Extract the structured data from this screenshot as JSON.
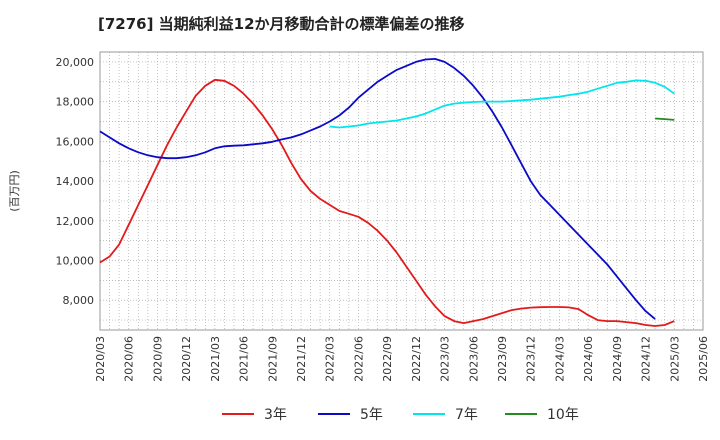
{
  "chart_data": {
    "type": "line",
    "title": "[7276]  当期純利益12か月移動合計の標準偏差の推移",
    "ylabel": "(百万円)",
    "xlabel": "",
    "ylim": [
      6500,
      20500
    ],
    "yticks": [
      8000,
      10000,
      12000,
      14000,
      16000,
      18000,
      20000
    ],
    "ytick_labels": [
      "8,000",
      "10,000",
      "12,000",
      "14,000",
      "16,000",
      "18,000",
      "20,000"
    ],
    "xticks": [
      "2020/03",
      "2020/06",
      "2020/09",
      "2020/12",
      "2021/03",
      "2021/06",
      "2021/09",
      "2021/12",
      "2022/03",
      "2022/06",
      "2022/09",
      "2022/12",
      "2023/03",
      "2023/06",
      "2023/09",
      "2023/12",
      "2024/03",
      "2024/06",
      "2024/09",
      "2024/12",
      "2025/03",
      "2025/06"
    ],
    "grid": true,
    "legend_position": "bottom",
    "series": [
      {
        "name": "3年",
        "color": "#e31a1c",
        "points": [
          [
            "2020/03",
            9900
          ],
          [
            "2020/04",
            10200
          ],
          [
            "2020/05",
            10800
          ],
          [
            "2020/06",
            11800
          ],
          [
            "2020/07",
            12800
          ],
          [
            "2020/08",
            13800
          ],
          [
            "2020/09",
            14800
          ],
          [
            "2020/10",
            15800
          ],
          [
            "2020/11",
            16700
          ],
          [
            "2020/12",
            17500
          ],
          [
            "2021/01",
            18300
          ],
          [
            "2021/02",
            18800
          ],
          [
            "2021/03",
            19100
          ],
          [
            "2021/04",
            19050
          ],
          [
            "2021/05",
            18800
          ],
          [
            "2021/06",
            18400
          ],
          [
            "2021/07",
            17900
          ],
          [
            "2021/08",
            17300
          ],
          [
            "2021/09",
            16600
          ],
          [
            "2021/10",
            15800
          ],
          [
            "2021/11",
            14900
          ],
          [
            "2021/12",
            14100
          ],
          [
            "2022/01",
            13500
          ],
          [
            "2022/02",
            13100
          ],
          [
            "2022/03",
            12800
          ],
          [
            "2022/04",
            12500
          ],
          [
            "2022/05",
            12350
          ],
          [
            "2022/06",
            12200
          ],
          [
            "2022/07",
            11900
          ],
          [
            "2022/08",
            11500
          ],
          [
            "2022/09",
            11000
          ],
          [
            "2022/10",
            10400
          ],
          [
            "2022/11",
            9700
          ],
          [
            "2022/12",
            9000
          ],
          [
            "2023/01",
            8300
          ],
          [
            "2023/02",
            7700
          ],
          [
            "2023/03",
            7200
          ],
          [
            "2023/04",
            6950
          ],
          [
            "2023/05",
            6850
          ],
          [
            "2023/06",
            6950
          ],
          [
            "2023/07",
            7050
          ],
          [
            "2023/08",
            7200
          ],
          [
            "2023/09",
            7350
          ],
          [
            "2023/10",
            7500
          ],
          [
            "2023/11",
            7580
          ],
          [
            "2023/12",
            7630
          ],
          [
            "2024/01",
            7650
          ],
          [
            "2024/02",
            7660
          ],
          [
            "2024/03",
            7660
          ],
          [
            "2024/04",
            7640
          ],
          [
            "2024/05",
            7550
          ],
          [
            "2024/06",
            7250
          ],
          [
            "2024/07",
            7000
          ],
          [
            "2024/08",
            6950
          ],
          [
            "2024/09",
            6950
          ],
          [
            "2024/10",
            6900
          ],
          [
            "2024/11",
            6850
          ],
          [
            "2024/12",
            6750
          ],
          [
            "2025/01",
            6700
          ],
          [
            "2025/02",
            6750
          ],
          [
            "2025/03",
            6950
          ]
        ]
      },
      {
        "name": "5年",
        "color": "#0a0ac8",
        "points": [
          [
            "2020/03",
            16500
          ],
          [
            "2020/04",
            16200
          ],
          [
            "2020/05",
            15900
          ],
          [
            "2020/06",
            15650
          ],
          [
            "2020/07",
            15450
          ],
          [
            "2020/08",
            15300
          ],
          [
            "2020/09",
            15200
          ],
          [
            "2020/10",
            15150
          ],
          [
            "2020/11",
            15150
          ],
          [
            "2020/12",
            15200
          ],
          [
            "2021/01",
            15300
          ],
          [
            "2021/02",
            15450
          ],
          [
            "2021/03",
            15650
          ],
          [
            "2021/04",
            15750
          ],
          [
            "2021/05",
            15780
          ],
          [
            "2021/06",
            15800
          ],
          [
            "2021/07",
            15850
          ],
          [
            "2021/08",
            15900
          ],
          [
            "2021/09",
            15980
          ],
          [
            "2021/10",
            16100
          ],
          [
            "2021/11",
            16200
          ],
          [
            "2021/12",
            16350
          ],
          [
            "2022/01",
            16550
          ],
          [
            "2022/02",
            16750
          ],
          [
            "2022/03",
            17000
          ],
          [
            "2022/04",
            17300
          ],
          [
            "2022/05",
            17700
          ],
          [
            "2022/06",
            18200
          ],
          [
            "2022/07",
            18600
          ],
          [
            "2022/08",
            19000
          ],
          [
            "2022/09",
            19300
          ],
          [
            "2022/10",
            19600
          ],
          [
            "2022/11",
            19800
          ],
          [
            "2022/12",
            20000
          ],
          [
            "2023/01",
            20120
          ],
          [
            "2023/02",
            20150
          ],
          [
            "2023/03",
            20000
          ],
          [
            "2023/04",
            19700
          ],
          [
            "2023/05",
            19300
          ],
          [
            "2023/06",
            18800
          ],
          [
            "2023/07",
            18200
          ],
          [
            "2023/08",
            17500
          ],
          [
            "2023/09",
            16700
          ],
          [
            "2023/10",
            15800
          ],
          [
            "2023/11",
            14900
          ],
          [
            "2023/12",
            14000
          ],
          [
            "2024/01",
            13300
          ],
          [
            "2024/02",
            12800
          ],
          [
            "2024/03",
            12300
          ],
          [
            "2024/04",
            11800
          ],
          [
            "2024/05",
            11300
          ],
          [
            "2024/06",
            10800
          ],
          [
            "2024/07",
            10300
          ],
          [
            "2024/08",
            9800
          ],
          [
            "2024/09",
            9200
          ],
          [
            "2024/10",
            8600
          ],
          [
            "2024/11",
            8000
          ],
          [
            "2024/12",
            7450
          ],
          [
            "2025/01",
            7050
          ]
        ]
      },
      {
        "name": "7年",
        "color": "#00e5ee",
        "points": [
          [
            "2022/03",
            16750
          ],
          [
            "2022/04",
            16700
          ],
          [
            "2022/05",
            16750
          ],
          [
            "2022/06",
            16800
          ],
          [
            "2022/07",
            16900
          ],
          [
            "2022/08",
            16950
          ],
          [
            "2022/09",
            17000
          ],
          [
            "2022/10",
            17050
          ],
          [
            "2022/11",
            17150
          ],
          [
            "2022/12",
            17250
          ],
          [
            "2023/01",
            17400
          ],
          [
            "2023/02",
            17600
          ],
          [
            "2023/03",
            17800
          ],
          [
            "2023/04",
            17900
          ],
          [
            "2023/05",
            17950
          ],
          [
            "2023/06",
            17980
          ],
          [
            "2023/07",
            18000
          ],
          [
            "2023/08",
            18000
          ],
          [
            "2023/09",
            18000
          ],
          [
            "2023/10",
            18030
          ],
          [
            "2023/11",
            18070
          ],
          [
            "2023/12",
            18100
          ],
          [
            "2024/01",
            18150
          ],
          [
            "2024/02",
            18200
          ],
          [
            "2024/03",
            18250
          ],
          [
            "2024/04",
            18330
          ],
          [
            "2024/05",
            18400
          ],
          [
            "2024/06",
            18500
          ],
          [
            "2024/07",
            18650
          ],
          [
            "2024/08",
            18800
          ],
          [
            "2024/09",
            18950
          ],
          [
            "2024/10",
            19000
          ],
          [
            "2024/11",
            19070
          ],
          [
            "2024/12",
            19050
          ],
          [
            "2025/01",
            18950
          ],
          [
            "2025/02",
            18750
          ],
          [
            "2025/03",
            18400
          ]
        ]
      },
      {
        "name": "10年",
        "color": "#228b22",
        "points": [
          [
            "2025/01",
            17150
          ],
          [
            "2025/02",
            17120
          ],
          [
            "2025/03",
            17080
          ]
        ]
      }
    ]
  }
}
